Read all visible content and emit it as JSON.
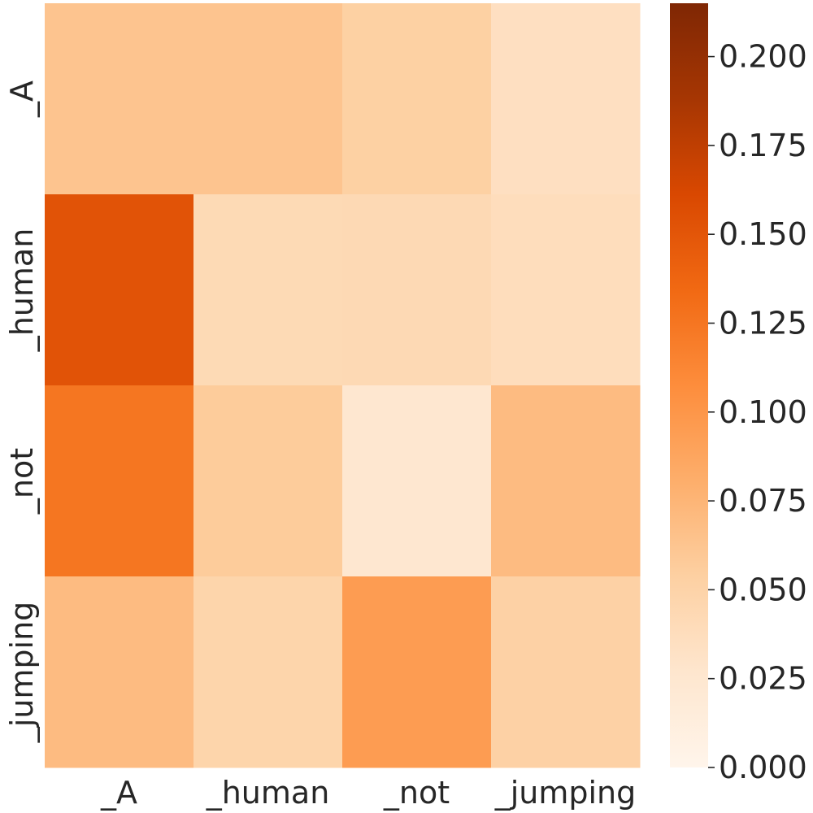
{
  "chart_data": {
    "type": "heatmap",
    "title": "",
    "xlabel": "",
    "ylabel": "",
    "x_categories": [
      "_A",
      "_human",
      "_not",
      "_jumping"
    ],
    "y_categories": [
      "_A",
      "_human",
      "_not",
      "_jumping"
    ],
    "values": [
      [
        0.063,
        0.063,
        0.053,
        0.035
      ],
      [
        0.152,
        0.042,
        0.043,
        0.038
      ],
      [
        0.125,
        0.057,
        0.025,
        0.07
      ],
      [
        0.07,
        0.048,
        0.095,
        0.052
      ]
    ],
    "colormap": "Oranges",
    "colorbar": {
      "min": 0.0,
      "max": 0.215,
      "ticks": [
        0.0,
        0.025,
        0.05,
        0.075,
        0.1,
        0.125,
        0.15,
        0.175,
        0.2
      ],
      "tick_labels": [
        "0.000",
        "0.025",
        "0.050",
        "0.075",
        "0.100",
        "0.125",
        "0.150",
        "0.175",
        "0.200"
      ]
    },
    "colors": {
      "stops": [
        "#fff5eb",
        "#fee6ce",
        "#fdd0a2",
        "#fdae6b",
        "#fd8d3c",
        "#f16913",
        "#d94801",
        "#a63603",
        "#7f2704"
      ]
    }
  }
}
